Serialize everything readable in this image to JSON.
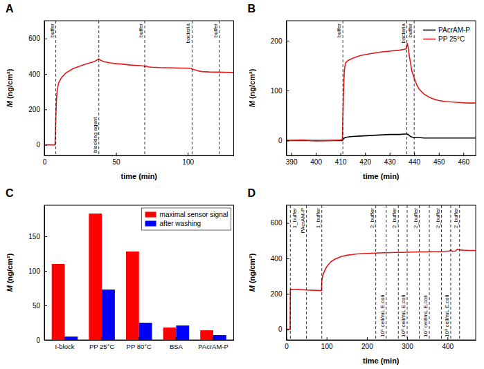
{
  "chart_data": [
    {
      "type": "line",
      "title": "A",
      "x_label": "time (min)",
      "y_label": "M (ng/cm²)",
      "x": [
        0,
        7.5,
        8,
        8.5,
        9,
        10,
        12,
        15,
        20,
        25,
        30,
        35,
        38,
        39,
        42,
        46,
        50,
        55,
        60,
        65,
        69.5,
        70,
        71,
        72,
        75,
        80,
        85,
        90,
        95,
        100,
        102.5,
        103,
        104,
        106,
        108,
        110,
        115,
        120,
        125,
        130,
        132
      ],
      "values": [
        0,
        0,
        150,
        260,
        310,
        350,
        380,
        405,
        430,
        445,
        458,
        470,
        485,
        478,
        468,
        462,
        458,
        455,
        450,
        447,
        445,
        438,
        445,
        440,
        438,
        436,
        435,
        434,
        433,
        432,
        430,
        428,
        425,
        420,
        416,
        413,
        411,
        410,
        409,
        408,
        407
      ],
      "color": "#e31a1c",
      "xlim": [
        0,
        132
      ],
      "xticks": [
        0,
        50,
        100
      ],
      "ylim": [
        -60,
        700
      ],
      "yticks": [
        0,
        200,
        400,
        600
      ],
      "annotations": [
        {
          "x": 8,
          "label": "buffer"
        },
        {
          "x": 38,
          "label": "blocking agent"
        },
        {
          "x": 70,
          "label": "buffer"
        },
        {
          "x": 103,
          "label": "bacteria"
        },
        {
          "x": 122,
          "label": "buffer"
        }
      ]
    },
    {
      "type": "line",
      "title": "B",
      "x_label": "time (min)",
      "y_label": "M (ng/cm²)",
      "x": [
        388,
        395,
        400,
        405,
        410,
        410.8,
        411.2,
        411.6,
        412,
        413,
        415,
        418,
        422,
        426,
        430,
        434,
        436,
        436.8,
        437.2,
        437.6,
        438,
        438.5,
        439,
        440,
        441,
        442,
        444,
        446,
        448,
        450,
        453,
        456,
        459,
        462,
        465
      ],
      "series": [
        {
          "name": "PAcrAM-P",
          "color": "#000000",
          "values": [
            0,
            0,
            0,
            0,
            0,
            0,
            3,
            5,
            6,
            7,
            8,
            9,
            10,
            11,
            12,
            12,
            13,
            13,
            13,
            12,
            10,
            8,
            7,
            6,
            6,
            6,
            5,
            5,
            5,
            5,
            5,
            5,
            5,
            5,
            5
          ]
        },
        {
          "name": "PP 25°C",
          "color": "#e31a1c",
          "values": [
            0,
            1,
            -1,
            0,
            1,
            2,
            90,
            140,
            155,
            160,
            165,
            170,
            174,
            177,
            179,
            181,
            183,
            184,
            195,
            185,
            170,
            155,
            140,
            125,
            112,
            103,
            93,
            87,
            83,
            80,
            78,
            77,
            76,
            75,
            75
          ]
        }
      ],
      "legend": "upper right",
      "xlim": [
        388,
        465
      ],
      "xticks": [
        390,
        400,
        410,
        420,
        430,
        440,
        450,
        460
      ],
      "ylim": [
        -30,
        240
      ],
      "yticks": [
        0,
        100,
        200
      ],
      "annotations": [
        {
          "x": 411,
          "label": "buffer"
        },
        {
          "x": 437,
          "label": "bacteria"
        },
        {
          "x": 440,
          "label": "buffer"
        }
      ]
    },
    {
      "type": "bar",
      "title": "C",
      "y_label": "M (ng/cm²)",
      "categories": [
        "I-block",
        "PP 25°C",
        "PP 80°C",
        "BSA",
        "PAcrAM-P"
      ],
      "series": [
        {
          "name": "maximal sensor signal",
          "color": "#ff0000",
          "values": [
            110,
            183,
            128,
            18,
            14
          ]
        },
        {
          "name": "after washing",
          "color": "#0000ff",
          "values": [
            5,
            73,
            25,
            21,
            7
          ]
        }
      ],
      "legend": "upper right",
      "ylim": [
        0,
        195
      ],
      "yticks": [
        0,
        50,
        100,
        150
      ]
    },
    {
      "type": "line",
      "title": "D",
      "x_label": "time (min)",
      "y_label": "M (ng/cm²)",
      "x": [
        0,
        9.5,
        10,
        11,
        15,
        30,
        45,
        50,
        60,
        70,
        80,
        87.5,
        88,
        90,
        95,
        100,
        110,
        120,
        135,
        150,
        175,
        200,
        222,
        230,
        248,
        260,
        278,
        290,
        300,
        315,
        330,
        345,
        355,
        370,
        385,
        395,
        405,
        408,
        412,
        420,
        425,
        430,
        440,
        455,
        470
      ],
      "values": [
        0,
        0,
        220,
        226,
        225,
        224,
        223,
        222,
        221,
        220,
        219,
        218,
        270,
        300,
        330,
        352,
        380,
        395,
        410,
        418,
        425,
        428,
        430,
        431,
        432,
        433,
        434,
        434,
        435,
        436,
        437,
        437,
        438,
        438,
        439,
        440,
        442,
        447,
        440,
        442,
        452,
        448,
        446,
        445,
        445
      ],
      "color": "#e31a1c",
      "xlim": [
        0,
        470
      ],
      "xticks": [
        0,
        100,
        200,
        300,
        400
      ],
      "ylim": [
        -60,
        700
      ],
      "yticks": [
        0,
        200,
        400,
        600
      ],
      "annotations": [
        {
          "x": 10,
          "label": "1_buffer"
        },
        {
          "x": 50,
          "label": "PAcrAM-P"
        },
        {
          "x": 88,
          "label": "1_buffer"
        },
        {
          "x": 222,
          "label": "2_buffer"
        },
        {
          "x": 248,
          "label": "10⁵ cell/mL E.coli"
        },
        {
          "x": 278,
          "label": "2_buffer"
        },
        {
          "x": 300,
          "label": "10⁶ cell/mL E.coli"
        },
        {
          "x": 330,
          "label": "2_buffer"
        },
        {
          "x": 355,
          "label": "10⁷ cell/mL E.coli"
        },
        {
          "x": 385,
          "label": "2_buffer"
        },
        {
          "x": 408,
          "label": "10⁸ cell/mL E.coli"
        },
        {
          "x": 430,
          "label": "2_buffer"
        }
      ]
    }
  ]
}
